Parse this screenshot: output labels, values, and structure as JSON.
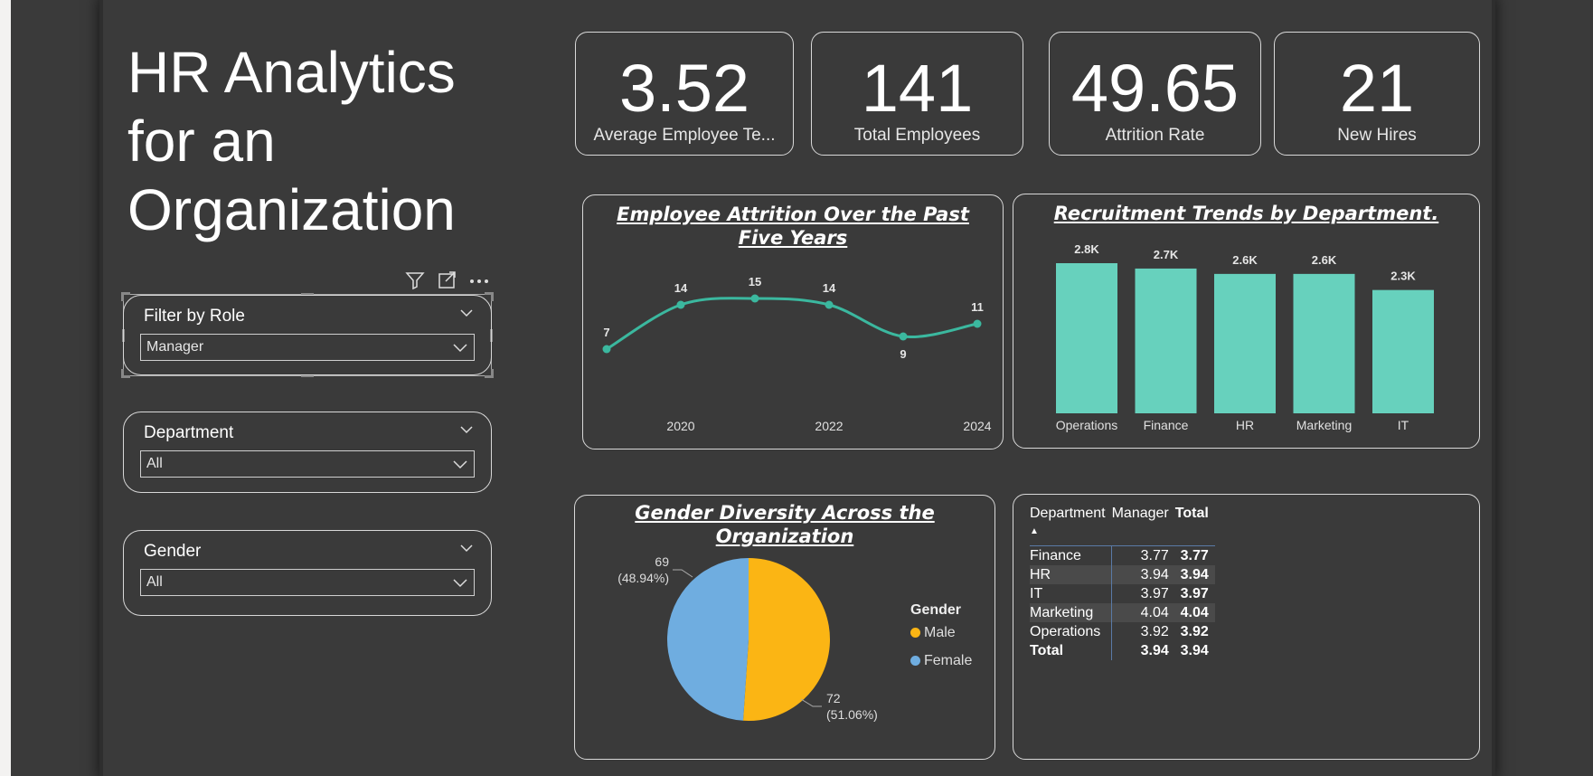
{
  "report": {
    "title_lines": [
      "HR Analytics",
      "for an",
      "Organization"
    ]
  },
  "kpis": [
    {
      "value": "3.52",
      "label": "Average Employee Te..."
    },
    {
      "value": "141",
      "label": "Total Employees"
    },
    {
      "value": "49.65",
      "label": "Attrition Rate"
    },
    {
      "value": "21",
      "label": "New Hires"
    }
  ],
  "slicers": {
    "role": {
      "title": "Filter by Role",
      "value": "Manager"
    },
    "department": {
      "title": "Department",
      "value": "All"
    },
    "gender": {
      "title": "Gender",
      "value": "All"
    }
  },
  "visual_header_icons": [
    "filter-icon",
    "focus-mode-icon",
    "more-options-icon"
  ],
  "colors": {
    "teal": "#67d1bd",
    "line": "#3bb89f",
    "male": "#fbb514",
    "female": "#6fade0",
    "background": "#3a3a3a"
  },
  "chart_data": [
    {
      "type": "line",
      "title": "Employee Attrition Over the Past Five Years",
      "x": [
        2019,
        2020,
        2021,
        2022,
        2023,
        2024
      ],
      "values": [
        7,
        14,
        15,
        14,
        9,
        11
      ],
      "data_labels": [
        "7",
        "14",
        "15",
        "14",
        "9",
        "11"
      ],
      "x_tick_labels": [
        "2020",
        "2022",
        "2024"
      ],
      "ylim": [
        5,
        17
      ]
    },
    {
      "type": "bar",
      "title": "Recruitment Trends by Department.",
      "categories": [
        "Operations",
        "Finance",
        "HR",
        "Marketing",
        "IT"
      ],
      "values": [
        2800,
        2700,
        2600,
        2600,
        2300
      ],
      "data_labels": [
        "2.8K",
        "2.7K",
        "2.6K",
        "2.6K",
        "2.3K"
      ],
      "ylim": [
        0,
        2800
      ]
    },
    {
      "type": "pie",
      "title": "Gender Diversity Across the Organization",
      "legend_title": "Gender",
      "slices": [
        {
          "name": "Male",
          "value": 72,
          "label_value": "72",
          "label_pct": "(51.06%)"
        },
        {
          "name": "Female",
          "value": 69,
          "label_value": "69",
          "label_pct": "(48.94%)"
        }
      ]
    },
    {
      "type": "table",
      "columns": [
        "Department",
        "Manager",
        "Total"
      ],
      "rows": [
        {
          "dept": "Finance",
          "manager": "3.77",
          "total": "3.77"
        },
        {
          "dept": "HR",
          "manager": "3.94",
          "total": "3.94"
        },
        {
          "dept": "IT",
          "manager": "3.97",
          "total": "3.97"
        },
        {
          "dept": "Marketing",
          "manager": "4.04",
          "total": "4.04"
        },
        {
          "dept": "Operations",
          "manager": "3.92",
          "total": "3.92"
        }
      ],
      "total_row": {
        "dept": "Total",
        "manager": "3.94",
        "total": "3.94"
      }
    }
  ]
}
